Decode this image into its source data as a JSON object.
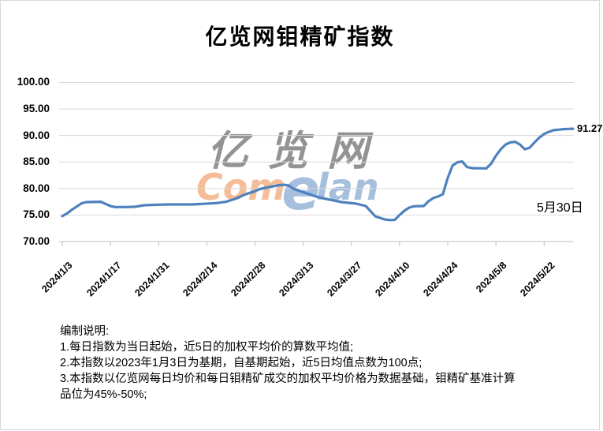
{
  "chart_data": {
    "type": "line",
    "title": "亿览网钼精矿指数",
    "end_label": "91.27",
    "annotation": "5月30日",
    "ylim": [
      70,
      100
    ],
    "grid": true,
    "legend": "none",
    "y_ticks": [
      {
        "label": "100.00",
        "value": 100
      },
      {
        "label": "95.00",
        "value": 95
      },
      {
        "label": "90.00",
        "value": 90
      },
      {
        "label": "85.00",
        "value": 85
      },
      {
        "label": "80.00",
        "value": 80
      },
      {
        "label": "75.00",
        "value": 75
      },
      {
        "label": "70.00",
        "value": 70
      }
    ],
    "x_ticks": [
      {
        "label": "2024/1/3",
        "index": 0
      },
      {
        "label": "2024/1/17",
        "index": 10
      },
      {
        "label": "2024/1/31",
        "index": 20
      },
      {
        "label": "2024/2/14",
        "index": 30
      },
      {
        "label": "2024/2/28",
        "index": 40
      },
      {
        "label": "2024/3/13",
        "index": 50
      },
      {
        "label": "2024/3/27",
        "index": 60
      },
      {
        "label": "2024/4/10",
        "index": 70
      },
      {
        "label": "2024/4/24",
        "index": 80
      },
      {
        "label": "2024/5/8",
        "index": 90
      },
      {
        "label": "2024/5/22",
        "index": 100
      }
    ],
    "x_index_note": "index = weekday count from 2024/1/3; last point index 106 = 2024/5/30",
    "series": [
      {
        "name": "钼精矿指数",
        "color": "#4E81BD",
        "points": [
          [
            0,
            74.8
          ],
          [
            1,
            75.3
          ],
          [
            2,
            76.0
          ],
          [
            3,
            76.6
          ],
          [
            4,
            77.2
          ],
          [
            5,
            77.45
          ],
          [
            8,
            77.5
          ],
          [
            9,
            77.1
          ],
          [
            10,
            76.7
          ],
          [
            11,
            76.5
          ],
          [
            13,
            76.5
          ],
          [
            15,
            76.55
          ],
          [
            16,
            76.7
          ],
          [
            17,
            76.85
          ],
          [
            20,
            76.95
          ],
          [
            22,
            77.0
          ],
          [
            27,
            77.0
          ],
          [
            29,
            77.1
          ],
          [
            32,
            77.25
          ],
          [
            34,
            77.5
          ],
          [
            35,
            77.8
          ],
          [
            36,
            78.1
          ],
          [
            38,
            78.9
          ],
          [
            40,
            79.5
          ],
          [
            41,
            79.9
          ],
          [
            43,
            80.3
          ],
          [
            45,
            80.65
          ],
          [
            46,
            80.7
          ],
          [
            47,
            80.55
          ],
          [
            48,
            79.95
          ],
          [
            50,
            79.3
          ],
          [
            51,
            79.0
          ],
          [
            53,
            78.4
          ],
          [
            55,
            78.0
          ],
          [
            58,
            77.45
          ],
          [
            61,
            77.15
          ],
          [
            63,
            76.7
          ],
          [
            64,
            75.7
          ],
          [
            65,
            74.75
          ],
          [
            67,
            74.15
          ],
          [
            68,
            74.05
          ],
          [
            69,
            74.1
          ],
          [
            70,
            75.0
          ],
          [
            71,
            75.8
          ],
          [
            72,
            76.4
          ],
          [
            73,
            76.65
          ],
          [
            75,
            76.7
          ],
          [
            76,
            77.6
          ],
          [
            77,
            78.2
          ],
          [
            78,
            78.5
          ],
          [
            79,
            78.95
          ],
          [
            80,
            82.0
          ],
          [
            81,
            84.35
          ],
          [
            82,
            84.95
          ],
          [
            83,
            85.1
          ],
          [
            84,
            84.05
          ],
          [
            85,
            83.85
          ],
          [
            88,
            83.8
          ],
          [
            89,
            84.7
          ],
          [
            90,
            86.2
          ],
          [
            91,
            87.4
          ],
          [
            92,
            88.3
          ],
          [
            93,
            88.7
          ],
          [
            94,
            88.8
          ],
          [
            95,
            88.3
          ],
          [
            96,
            87.4
          ],
          [
            97,
            87.7
          ],
          [
            98,
            88.7
          ],
          [
            99,
            89.6
          ],
          [
            100,
            90.3
          ],
          [
            101,
            90.7
          ],
          [
            102,
            91.0
          ],
          [
            103,
            91.1
          ],
          [
            104,
            91.2
          ],
          [
            105,
            91.25
          ],
          [
            106,
            91.27
          ]
        ]
      }
    ]
  },
  "watermark": {
    "cn": "亿览网",
    "en": [
      "Com",
      "e",
      "lan"
    ]
  },
  "notes": {
    "lines": [
      "编制说明:",
      "1.每日指数为当日起始，近5日的加权平均价的算数平均值;",
      "2.本指数以2023年1月3日为基期，自基期起始，近5日均值点数为100点;",
      "3.本指数以亿览网每日均价和每日钼精矿成交的加权平均价格为数据基础，钼精矿基准计算",
      "品位为45%-50%;"
    ]
  },
  "colors": {
    "line": "#4E81BD",
    "grid": "#d9d9d9",
    "axis": "#bfbfbf",
    "watermark_blue": "#4F81BD",
    "watermark_orange": "#ED7D31",
    "text": "#000000"
  }
}
